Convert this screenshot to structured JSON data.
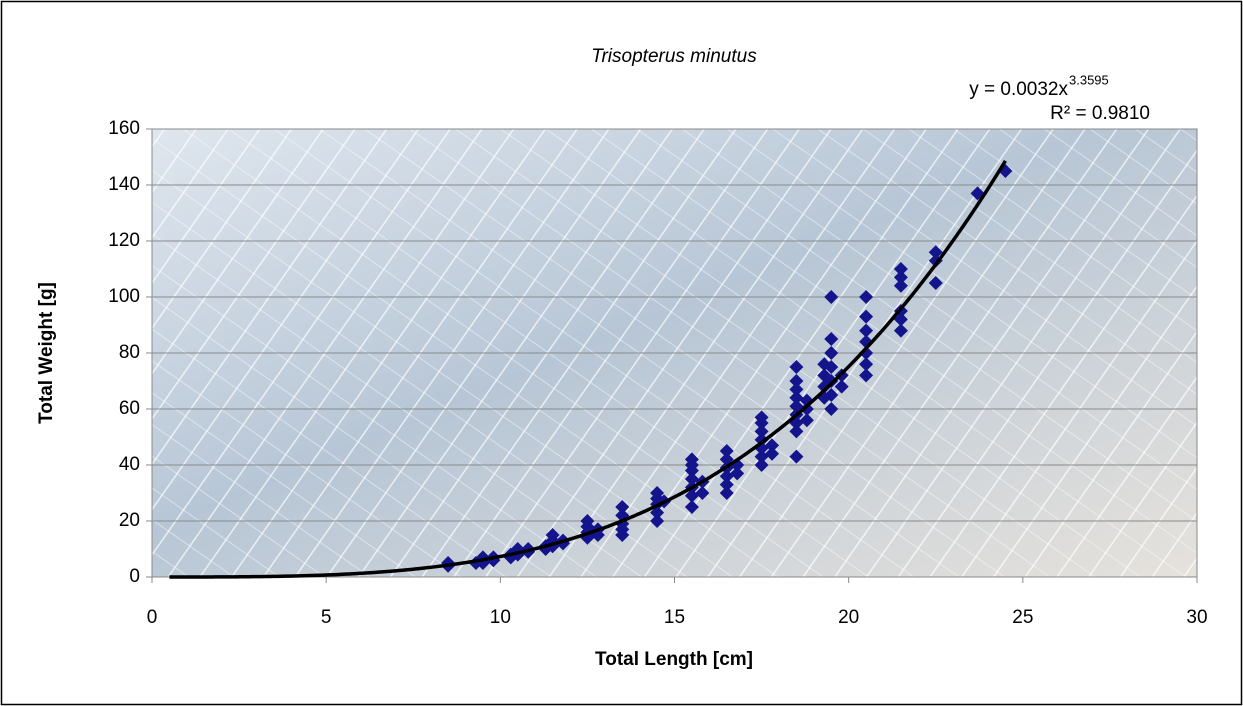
{
  "chart_data": {
    "type": "scatter",
    "title": "Trisopterus minutus",
    "x_label": "Total Length [cm]",
    "y_label": "Total Weight [g]",
    "xlim": [
      0,
      30
    ],
    "xticks": [
      0,
      5,
      10,
      15,
      20,
      25,
      30
    ],
    "ylim": [
      0,
      160
    ],
    "yticks": [
      0,
      20,
      40,
      60,
      80,
      100,
      120,
      140,
      160
    ],
    "grid": true,
    "series": [
      {
        "color": "#14148c",
        "x": [
          8.5,
          8.5,
          9.3,
          9.5,
          9.5,
          9.5,
          9.8,
          9.8,
          10.3,
          10.3,
          10.5,
          10.5,
          10.5,
          10.8,
          10.8,
          11.3,
          11.3,
          11.5,
          11.5,
          11.5,
          11.5,
          11.8,
          11.8,
          12.5,
          12.5,
          12.5,
          12.5,
          12.8,
          12.8,
          13.5,
          13.5,
          13.5,
          13.5,
          13.5,
          14.5,
          14.5,
          14.5,
          14.5,
          14.5,
          14.7,
          15.5,
          15.5,
          15.5,
          15.5,
          15.5,
          15.5,
          15.5,
          15.8,
          15.8,
          16.5,
          16.5,
          16.5,
          16.5,
          16.5,
          16.5,
          16.8,
          16.8,
          17.5,
          17.5,
          17.5,
          17.5,
          17.5,
          17.5,
          17.5,
          17.8,
          17.8,
          18.5,
          18.5,
          18.5,
          18.5,
          18.5,
          18.5,
          18.5,
          18.5,
          18.5,
          18.8,
          18.8,
          18.8,
          19.3,
          19.3,
          19.3,
          19.3,
          19.5,
          19.5,
          19.5,
          19.5,
          19.5,
          19.5,
          19.5,
          19.8,
          19.8,
          20.5,
          20.5,
          20.5,
          20.5,
          20.5,
          20.5,
          20.5,
          21.5,
          21.5,
          21.5,
          21.5,
          21.5,
          21.5,
          22.5,
          22.5,
          22.5,
          23.7,
          24.5
        ],
        "values": [
          4,
          5,
          5,
          5,
          6,
          7,
          6,
          7,
          7,
          8,
          8,
          9,
          10,
          9,
          10,
          10,
          11,
          11,
          12,
          13,
          15,
          12,
          13,
          14,
          16,
          18,
          20,
          15,
          17,
          15,
          17,
          19,
          22,
          25,
          20,
          23,
          26,
          28,
          30,
          27,
          25,
          29,
          32,
          35,
          38,
          40,
          42,
          30,
          34,
          30,
          33,
          36,
          39,
          42,
          45,
          37,
          40,
          40,
          43,
          46,
          49,
          52,
          55,
          57,
          44,
          47,
          43,
          52,
          55,
          58,
          61,
          64,
          67,
          70,
          75,
          56,
          60,
          63,
          64,
          68,
          72,
          76,
          60,
          65,
          70,
          75,
          80,
          85,
          100,
          68,
          72,
          72,
          76,
          80,
          84,
          88,
          93,
          100,
          88,
          92,
          95,
          104,
          107,
          110,
          105,
          113,
          116,
          137,
          145
        ]
      }
    ],
    "trendline": {
      "type": "power",
      "color": "#000000",
      "coefficient": 0.0032,
      "exponent": 3.3595,
      "x_range": [
        0.5,
        24.5
      ],
      "equation": "y = 0.0032x",
      "equation_exponent": "3.3595",
      "r_squared": "R² = 0.9810"
    }
  }
}
